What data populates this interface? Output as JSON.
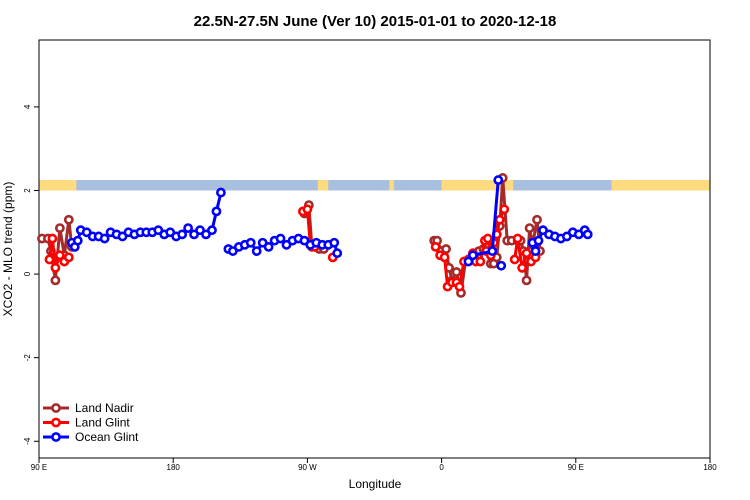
{
  "chart_data": {
    "type": "line",
    "title": "22.5N-27.5N June (Ver 10)   2015-01-01 to 2020-12-18",
    "xlabel": "Longitude",
    "ylabel": "XCO2 - MLO trend (ppm)",
    "xlim": [
      90,
      450
    ],
    "ylim": [
      -4.4,
      5.6
    ],
    "x_ticks": [
      {
        "value": 90,
        "label": "90 E"
      },
      {
        "value": 180,
        "label": "180"
      },
      {
        "value": 270,
        "label": "90 W"
      },
      {
        "value": 360,
        "label": "0"
      },
      {
        "value": 450,
        "label": "90 E"
      },
      {
        "value": 540,
        "label": "180"
      }
    ],
    "y_ticks": [
      {
        "value": -4,
        "label": "-4"
      },
      {
        "value": -2,
        "label": "-2"
      },
      {
        "value": 0,
        "label": "0"
      },
      {
        "value": 2,
        "label": "2"
      },
      {
        "value": 4,
        "label": "4"
      }
    ],
    "x_scale_note": "axis spans 90E to 180 (next cycle)",
    "land_ocean_band": {
      "y_range": [
        2.0,
        2.25
      ],
      "land_color": "#fedb7f",
      "ocean_color": "#a8bfe0",
      "land_segments": [
        [
          90,
          115
        ],
        [
          277,
          284
        ],
        [
          325,
          328
        ],
        [
          360,
          408
        ],
        [
          474,
          545
        ]
      ]
    },
    "legend_position": "bottom-left",
    "series": [
      {
        "name": "Land Nadir",
        "color": "#a52a2a",
        "points": [
          [
            92,
            0.85
          ],
          [
            96,
            0.85
          ],
          [
            98,
            0.55
          ],
          [
            101,
            -0.15
          ],
          [
            104,
            1.1
          ],
          [
            107,
            0.45
          ],
          [
            110,
            1.3
          ],
          [
            112,
            0.65
          ]
        ],
        "points2": [
          [
            268,
            1.45
          ],
          [
            271,
            1.65
          ],
          [
            273,
            0.65
          ],
          [
            278,
            0.6
          ],
          [
            281,
            0.6
          ]
        ],
        "points3": [
          [
            355,
            0.8
          ],
          [
            357,
            0.8
          ],
          [
            360,
            0.55
          ],
          [
            363,
            0.6
          ],
          [
            365,
            0.15
          ],
          [
            367,
            -0.15
          ],
          [
            370,
            0.05
          ],
          [
            373,
            -0.45
          ],
          [
            376,
            0.3
          ],
          [
            379,
            0.35
          ],
          [
            382,
            0.45
          ],
          [
            385,
            0.55
          ],
          [
            388,
            0.6
          ],
          [
            390,
            0.55
          ],
          [
            393,
            0.25
          ],
          [
            395,
            0.25
          ],
          [
            397,
            0.4
          ],
          [
            399,
            1.15
          ],
          [
            401,
            2.3
          ],
          [
            404,
            0.8
          ],
          [
            407,
            0.8
          ]
        ],
        "points4": [
          [
            411,
            0.8
          ],
          [
            413,
            0.8
          ],
          [
            415,
            0.55
          ],
          [
            417,
            -0.15
          ],
          [
            419,
            1.1
          ],
          [
            421,
            0.7
          ],
          [
            424,
            1.3
          ],
          [
            426,
            0.55
          ]
        ]
      },
      {
        "name": "Land Glint",
        "color": "#ff0000",
        "points": [
          [
            97,
            0.35
          ],
          [
            99,
            0.85
          ],
          [
            101,
            0.15
          ],
          [
            104,
            0.45
          ],
          [
            107,
            0.3
          ],
          [
            110,
            0.4
          ]
        ],
        "points2": [
          [
            267,
            1.5
          ],
          [
            270,
            1.55
          ],
          [
            272,
            0.7
          ],
          [
            275,
            0.65
          ]
        ],
        "points2b": [
          [
            287,
            0.4
          ]
        ],
        "points3": [
          [
            356,
            0.65
          ],
          [
            359,
            0.45
          ],
          [
            362,
            0.4
          ],
          [
            364,
            -0.3
          ],
          [
            367,
            -0.2
          ],
          [
            370,
            -0.2
          ],
          [
            372,
            -0.3
          ],
          [
            375,
            0.3
          ],
          [
            378,
            0.35
          ],
          [
            381,
            0.5
          ],
          [
            383,
            0.3
          ],
          [
            386,
            0.3
          ],
          [
            389,
            0.8
          ],
          [
            391,
            0.85
          ],
          [
            393,
            0.45
          ],
          [
            395,
            0.75
          ],
          [
            397,
            0.95
          ],
          [
            399,
            1.3
          ],
          [
            402,
            1.55
          ]
        ],
        "points4": [
          [
            409,
            0.35
          ],
          [
            411,
            0.85
          ],
          [
            414,
            0.15
          ],
          [
            417,
            0.5
          ],
          [
            420,
            0.3
          ],
          [
            423,
            0.4
          ]
        ]
      },
      {
        "name": "Ocean Glint",
        "color": "#0000ff",
        "points": [
          [
            112,
            0.75
          ],
          [
            114,
            0.65
          ],
          [
            116,
            0.8
          ],
          [
            118,
            1.05
          ],
          [
            122,
            1.0
          ],
          [
            126,
            0.9
          ],
          [
            130,
            0.9
          ],
          [
            134,
            0.85
          ],
          [
            138,
            1.0
          ],
          [
            142,
            0.95
          ],
          [
            146,
            0.9
          ],
          [
            150,
            1.0
          ],
          [
            154,
            0.95
          ],
          [
            158,
            1.0
          ],
          [
            162,
            1.0
          ],
          [
            166,
            1.0
          ],
          [
            170,
            1.05
          ],
          [
            174,
            0.95
          ],
          [
            178,
            1.0
          ],
          [
            182,
            0.9
          ],
          [
            186,
            0.95
          ],
          [
            190,
            1.1
          ],
          [
            194,
            0.95
          ],
          [
            198,
            1.05
          ],
          [
            202,
            0.95
          ],
          [
            206,
            1.05
          ],
          [
            209,
            1.5
          ],
          [
            212,
            1.95
          ]
        ],
        "points2": [
          [
            217,
            0.6
          ],
          [
            220,
            0.55
          ],
          [
            224,
            0.65
          ],
          [
            228,
            0.7
          ],
          [
            232,
            0.75
          ],
          [
            236,
            0.55
          ],
          [
            240,
            0.75
          ],
          [
            244,
            0.65
          ],
          [
            248,
            0.8
          ],
          [
            252,
            0.85
          ],
          [
            256,
            0.7
          ],
          [
            260,
            0.8
          ],
          [
            264,
            0.85
          ],
          [
            268,
            0.8
          ],
          [
            272,
            0.7
          ],
          [
            276,
            0.75
          ],
          [
            280,
            0.7
          ],
          [
            284,
            0.7
          ],
          [
            288,
            0.75
          ],
          [
            290,
            0.5
          ]
        ],
        "points3": [
          [
            378,
            0.3
          ],
          [
            381,
            0.45
          ],
          [
            394,
            0.55
          ],
          [
            398,
            2.25
          ]
        ],
        "points3b": [
          [
            400,
            0.2
          ]
        ],
        "points4": [
          [
            421,
            0.75
          ],
          [
            423,
            0.55
          ],
          [
            425,
            0.8
          ],
          [
            428,
            1.05
          ],
          [
            432,
            0.95
          ],
          [
            436,
            0.9
          ],
          [
            440,
            0.85
          ],
          [
            444,
            0.9
          ],
          [
            448,
            1.0
          ],
          [
            452,
            0.95
          ],
          [
            456,
            1.05
          ],
          [
            458,
            0.95
          ]
        ]
      }
    ]
  }
}
